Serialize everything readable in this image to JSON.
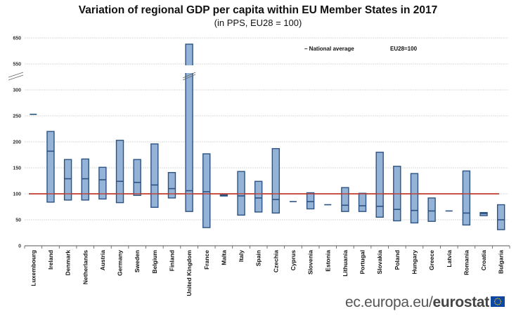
{
  "chart_data": {
    "type": "bar",
    "subtype": "floating-range-with-marker",
    "title": "Variation of regional GDP per capita within EU Member States in 2017",
    "subtitle": "(in PPS, EU28 = 100)",
    "xlabel": "",
    "ylabel": "",
    "ylim": [
      0,
      650
    ],
    "axis_break": [
      300,
      550
    ],
    "yticks": [
      "0",
      "50",
      "100",
      "150",
      "200",
      "250",
      "300",
      "550",
      "650"
    ],
    "grid": true,
    "reference_line": {
      "value": 100,
      "label": "EU28=100",
      "color": "#c0392b"
    },
    "legend": {
      "position": "top-right",
      "entries": [
        "– National average",
        "EU28=100"
      ]
    },
    "categories": [
      "Luxembourg",
      "Ireland",
      "Denmark",
      "Netherlands",
      "Austria",
      "Germany",
      "Sweden",
      "Belgium",
      "Finland",
      "United Kingdom",
      "France",
      "Malta",
      "Italy",
      "Spain",
      "Czechia",
      "Cyprus",
      "Slovenia",
      "Estonia",
      "Lithuania",
      "Portugal",
      "Slovakia",
      "Poland",
      "Hungary",
      "Greece",
      "Latvia",
      "Romania",
      "Croatia",
      "Bulgaria"
    ],
    "series": [
      {
        "name": "Regional minimum",
        "values": [
          253,
          84,
          88,
          88,
          90,
          83,
          97,
          74,
          92,
          66,
          35,
          96,
          59,
          65,
          63,
          85,
          71,
          79,
          66,
          66,
          55,
          48,
          44,
          47,
          67,
          40,
          58,
          31
        ]
      },
      {
        "name": "Regional maximum",
        "values": [
          253,
          220,
          166,
          167,
          151,
          203,
          166,
          196,
          141,
          626,
          177,
          98,
          143,
          124,
          187,
          85,
          102,
          79,
          112,
          101,
          180,
          153,
          139,
          92,
          67,
          144,
          64,
          79
        ]
      },
      {
        "name": "National average",
        "values": [
          253,
          182,
          129,
          129,
          127,
          124,
          122,
          117,
          110,
          106,
          104,
          96,
          96,
          92,
          89,
          85,
          85,
          79,
          78,
          77,
          76,
          70,
          68,
          67,
          67,
          63,
          62,
          50
        ]
      }
    ],
    "colors": {
      "bar_fill": "#95b3d7",
      "bar_stroke": "#2c5282",
      "reference": "#c0392b",
      "grid": "#cccccc"
    }
  },
  "footer": {
    "site_prefix": "ec.europa.eu/",
    "site_brand": "eurostat"
  }
}
